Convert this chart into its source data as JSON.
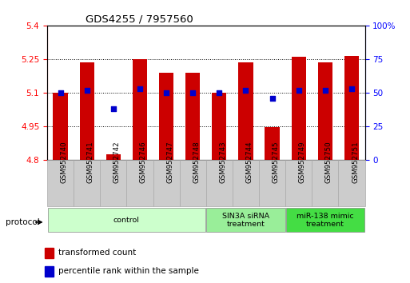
{
  "title": "GDS4255 / 7957560",
  "samples": [
    "GSM952740",
    "GSM952741",
    "GSM952742",
    "GSM952746",
    "GSM952747",
    "GSM952748",
    "GSM952743",
    "GSM952744",
    "GSM952745",
    "GSM952749",
    "GSM952750",
    "GSM952751"
  ],
  "bar_values": [
    5.1,
    5.235,
    4.825,
    5.25,
    5.19,
    5.19,
    5.1,
    5.235,
    4.945,
    5.26,
    5.235,
    5.265
  ],
  "percentile_values": [
    50,
    52,
    38,
    53,
    50,
    50,
    50,
    52,
    46,
    52,
    52,
    53
  ],
  "bar_bottom": 4.8,
  "ylim_left": [
    4.8,
    5.4
  ],
  "ylim_right": [
    0,
    100
  ],
  "yticks_left": [
    4.8,
    4.95,
    5.1,
    5.25,
    5.4
  ],
  "ytick_labels_left": [
    "4.8",
    "4.95",
    "5.1",
    "5.25",
    "5.4"
  ],
  "yticks_right": [
    0,
    25,
    50,
    75,
    100
  ],
  "ytick_labels_right": [
    "0",
    "25",
    "50",
    "75",
    "100%"
  ],
  "bar_color": "#cc0000",
  "dot_color": "#0000cc",
  "groups": [
    {
      "label": "control",
      "start": 0,
      "end": 6,
      "color": "#ccffcc"
    },
    {
      "label": "SIN3A siRNA\ntreatment",
      "start": 6,
      "end": 9,
      "color": "#99ee99"
    },
    {
      "label": "miR-138 mimic\ntreatment",
      "start": 9,
      "end": 12,
      "color": "#44dd44"
    }
  ],
  "protocol_label": "protocol",
  "legend_items": [
    {
      "label": "transformed count",
      "color": "#cc0000"
    },
    {
      "label": "percentile rank within the sample",
      "color": "#0000cc"
    }
  ],
  "bar_width": 0.55
}
